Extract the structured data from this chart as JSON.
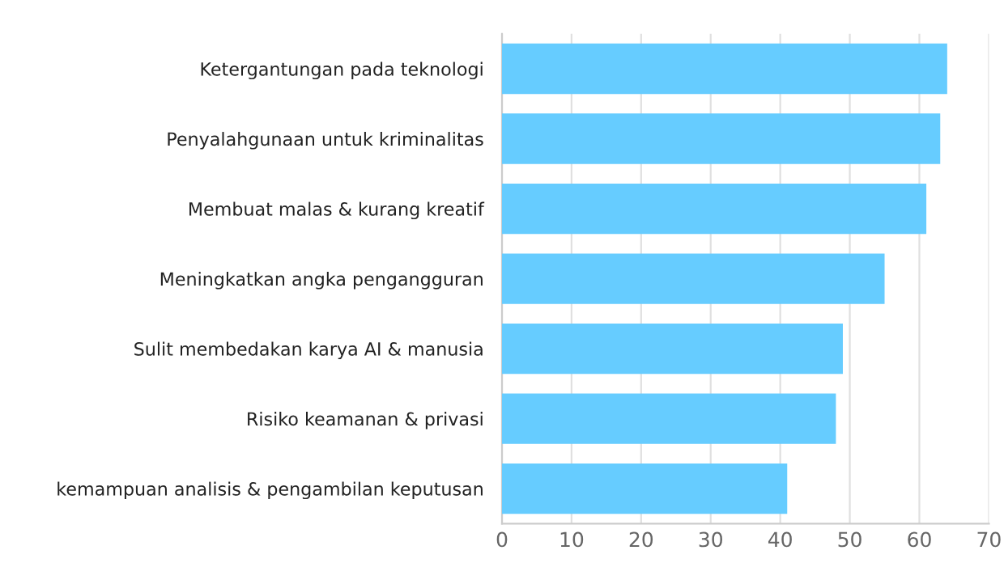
{
  "chart_data": {
    "type": "bar",
    "orientation": "horizontal",
    "categories": [
      "Ketergantungan pada teknologi",
      "Penyalahgunaan untuk kriminalitas",
      "Membuat malas & kurang kreatif",
      "Meningkatkan angka pengangguran",
      "Sulit membedakan karya AI & manusia",
      "Risiko keamanan & privasi",
      "kemampuan analisis & pengambilan keputusan"
    ],
    "values": [
      64,
      63,
      61,
      55,
      49,
      48,
      41
    ],
    "color": "#66ccff",
    "xlim": [
      0,
      70
    ],
    "xticks": [
      0,
      10,
      20,
      30,
      40,
      50,
      60,
      70
    ],
    "grid": "x"
  }
}
